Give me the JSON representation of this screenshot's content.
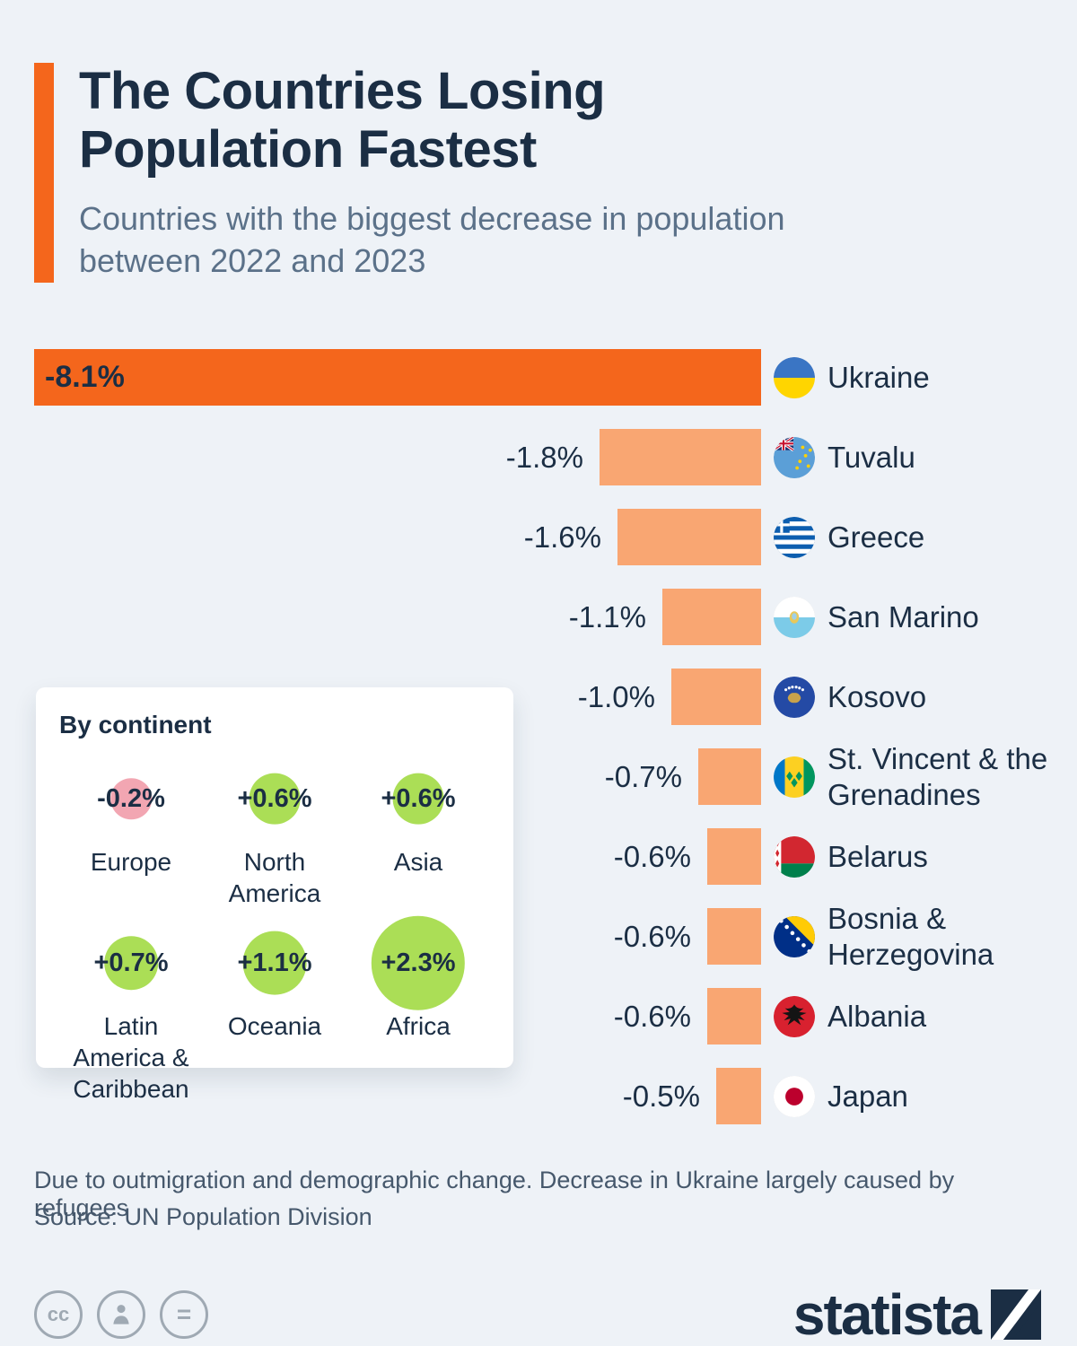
{
  "header": {
    "title": "The Countries Losing\nPopulation Fastest",
    "subtitle": "Countries with the biggest decrease in population between 2022 and 2023"
  },
  "chart_data": {
    "type": "bar",
    "orientation": "horizontal",
    "value_unit": "percent",
    "title": "Countries with the biggest decrease in population between 2022 and 2023",
    "categories": [
      "Ukraine",
      "Tuvalu",
      "Greece",
      "San Marino",
      "Kosovo",
      "St. Vincent & the Grenadines",
      "Belarus",
      "Bosnia & Herzegovina",
      "Albania",
      "Japan"
    ],
    "values": [
      -8.1,
      -1.8,
      -1.6,
      -1.1,
      -1.0,
      -0.7,
      -0.6,
      -0.6,
      -0.6,
      -0.5
    ],
    "labels": [
      "-8.1%",
      "-1.8%",
      "-1.6%",
      "-1.1%",
      "-1.0%",
      "-0.7%",
      "-0.6%",
      "-0.6%",
      "-0.6%",
      "-0.5%"
    ],
    "bar_color_primary": "#f4661c",
    "bar_color_secondary": "#f9a672",
    "flag_icons": [
      "ukraine-flag-icon",
      "tuvalu-flag-icon",
      "greece-flag-icon",
      "san-marino-flag-icon",
      "kosovo-flag-icon",
      "st-vincent-flag-icon",
      "belarus-flag-icon",
      "bosnia-flag-icon",
      "albania-flag-icon",
      "japan-flag-icon"
    ]
  },
  "continent_panel": {
    "title": "By continent",
    "items": [
      {
        "label": "Europe",
        "display": "-0.2%",
        "value": -0.2
      },
      {
        "label": "North America",
        "display": "+0.6%",
        "value": 0.6
      },
      {
        "label": "Asia",
        "display": "+0.6%",
        "value": 0.6
      },
      {
        "label": "Latin America & Caribbean",
        "display": "+0.7%",
        "value": 0.7
      },
      {
        "label": "Oceania",
        "display": "+1.1%",
        "value": 1.1
      },
      {
        "label": "Africa",
        "display": "+2.3%",
        "value": 2.3
      }
    ],
    "positive_color": "#abde56",
    "negative_color": "#f2a6b2"
  },
  "footer": {
    "note": "Due to outmigration and demographic change. Decrease in Ukraine largely caused by refugees",
    "source": "Source: UN Population Division",
    "brand": "statista",
    "cc_label": "cc",
    "equals_label": "="
  }
}
